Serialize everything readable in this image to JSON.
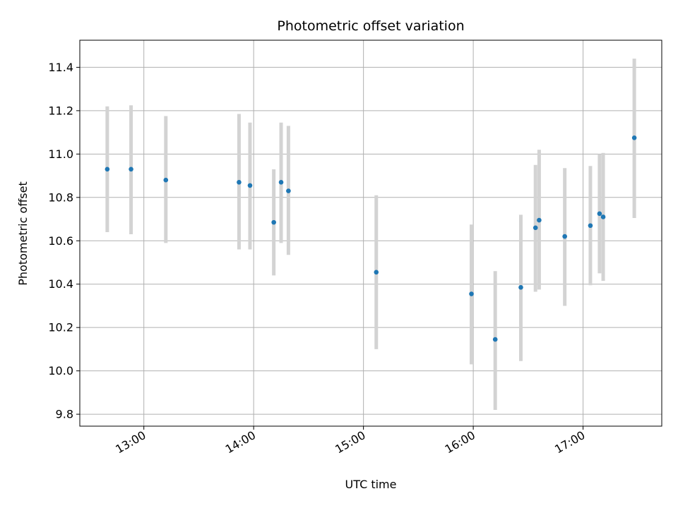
{
  "chart_data": {
    "type": "scatter",
    "title": "Photometric offset variation",
    "xlabel": "UTC time",
    "ylabel": "Photometric offset",
    "xlim": [
      "12:25",
      "17:43"
    ],
    "ylim": [
      9.745,
      11.525
    ],
    "x_ticks": [
      "13:00",
      "14:00",
      "15:00",
      "16:00",
      "17:00"
    ],
    "y_ticks": [
      9.8,
      10.0,
      10.2,
      10.4,
      10.6,
      10.8,
      11.0,
      11.2,
      11.4
    ],
    "y_tick_labels": [
      "9.8",
      "10.0",
      "10.2",
      "10.4",
      "10.6",
      "10.8",
      "11.0",
      "11.2",
      "11.4"
    ],
    "grid": true,
    "series": [
      {
        "marker_color": "#1f77b4",
        "errorbar_color": "#d3d3d3",
        "points": [
          {
            "time": "12:40",
            "y": 10.93,
            "err_low": 10.64,
            "err_high": 11.22
          },
          {
            "time": "12:53",
            "y": 10.93,
            "err_low": 10.63,
            "err_high": 11.225
          },
          {
            "time": "13:12",
            "y": 10.88,
            "err_low": 10.59,
            "err_high": 11.175
          },
          {
            "time": "13:52",
            "y": 10.87,
            "err_low": 10.56,
            "err_high": 11.185
          },
          {
            "time": "13:58",
            "y": 10.855,
            "err_low": 10.56,
            "err_high": 11.145
          },
          {
            "time": "14:11",
            "y": 10.685,
            "err_low": 10.44,
            "err_high": 10.93
          },
          {
            "time": "14:15",
            "y": 10.87,
            "err_low": 10.59,
            "err_high": 11.145
          },
          {
            "time": "14:19",
            "y": 10.83,
            "err_low": 10.535,
            "err_high": 11.13
          },
          {
            "time": "15:07",
            "y": 10.455,
            "err_low": 10.1,
            "err_high": 10.81
          },
          {
            "time": "15:59",
            "y": 10.355,
            "err_low": 10.03,
            "err_high": 10.675
          },
          {
            "time": "16:12",
            "y": 10.145,
            "err_low": 9.82,
            "err_high": 10.46
          },
          {
            "time": "16:26",
            "y": 10.385,
            "err_low": 10.045,
            "err_high": 10.72
          },
          {
            "time": "16:34",
            "y": 10.66,
            "err_low": 10.365,
            "err_high": 10.95
          },
          {
            "time": "16:36",
            "y": 10.695,
            "err_low": 10.375,
            "err_high": 11.02
          },
          {
            "time": "16:50",
            "y": 10.62,
            "err_low": 10.3,
            "err_high": 10.935
          },
          {
            "time": "17:04",
            "y": 10.67,
            "err_low": 10.395,
            "err_high": 10.945
          },
          {
            "time": "17:09",
            "y": 10.725,
            "err_low": 10.45,
            "err_high": 11.0
          },
          {
            "time": "17:11",
            "y": 10.71,
            "err_low": 10.415,
            "err_high": 11.005
          },
          {
            "time": "17:28",
            "y": 11.075,
            "err_low": 10.705,
            "err_high": 11.44
          }
        ]
      }
    ]
  }
}
